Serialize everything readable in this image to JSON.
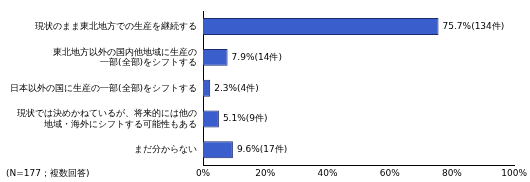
{
  "chart_data": {
    "type": "bar",
    "orientation": "horizontal",
    "categories": [
      "現状のまま東北地方での生産を継続する",
      "東北地方以外の国内他地域に生産の\n一部(全部)をシフトする",
      "日本以外の国に生産の一部(全部)をシフトする",
      "現状では決めかねているが、将来的には他の\n地域・海外にシフトする可能性もある",
      "まだ分からない"
    ],
    "values": [
      75.7,
      7.9,
      2.3,
      5.1,
      9.6
    ],
    "value_labels": [
      "75.7%(134件)",
      "7.9%(14件)",
      "2.3%(4件)",
      "5.1%(9件)",
      "9.6%(17件)"
    ],
    "data_labels": true,
    "color": "#3a5fcd",
    "xlim": [
      0,
      100
    ],
    "xticks": [
      {
        "value": 0,
        "label": "0%"
      },
      {
        "value": 20,
        "label": "20%"
      },
      {
        "value": 40,
        "label": "40%"
      },
      {
        "value": 60,
        "label": "60%"
      },
      {
        "value": 80,
        "label": "80%"
      },
      {
        "value": 100,
        "label": "100%"
      }
    ],
    "grid": false,
    "annotation": "(N=177；複数回答)"
  }
}
